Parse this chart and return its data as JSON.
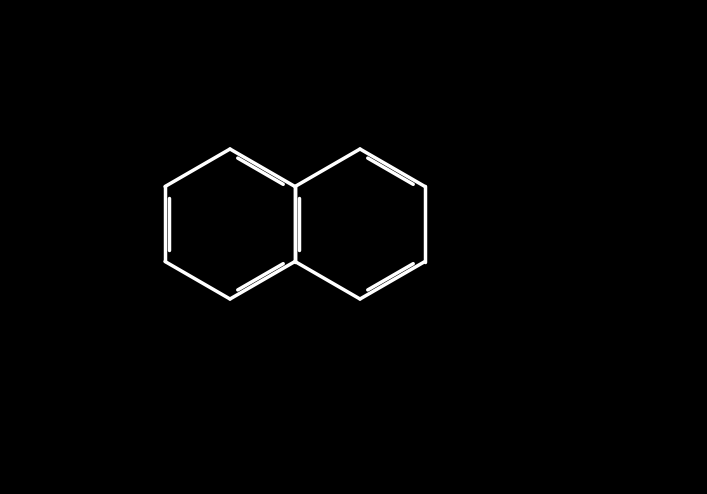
{
  "bg_color": "#000000",
  "bond_color": "#ffffff",
  "oxygen_color": "#ff0000",
  "linewidth": 2.5,
  "figsize": [
    7.07,
    4.94
  ],
  "dpi": 100
}
